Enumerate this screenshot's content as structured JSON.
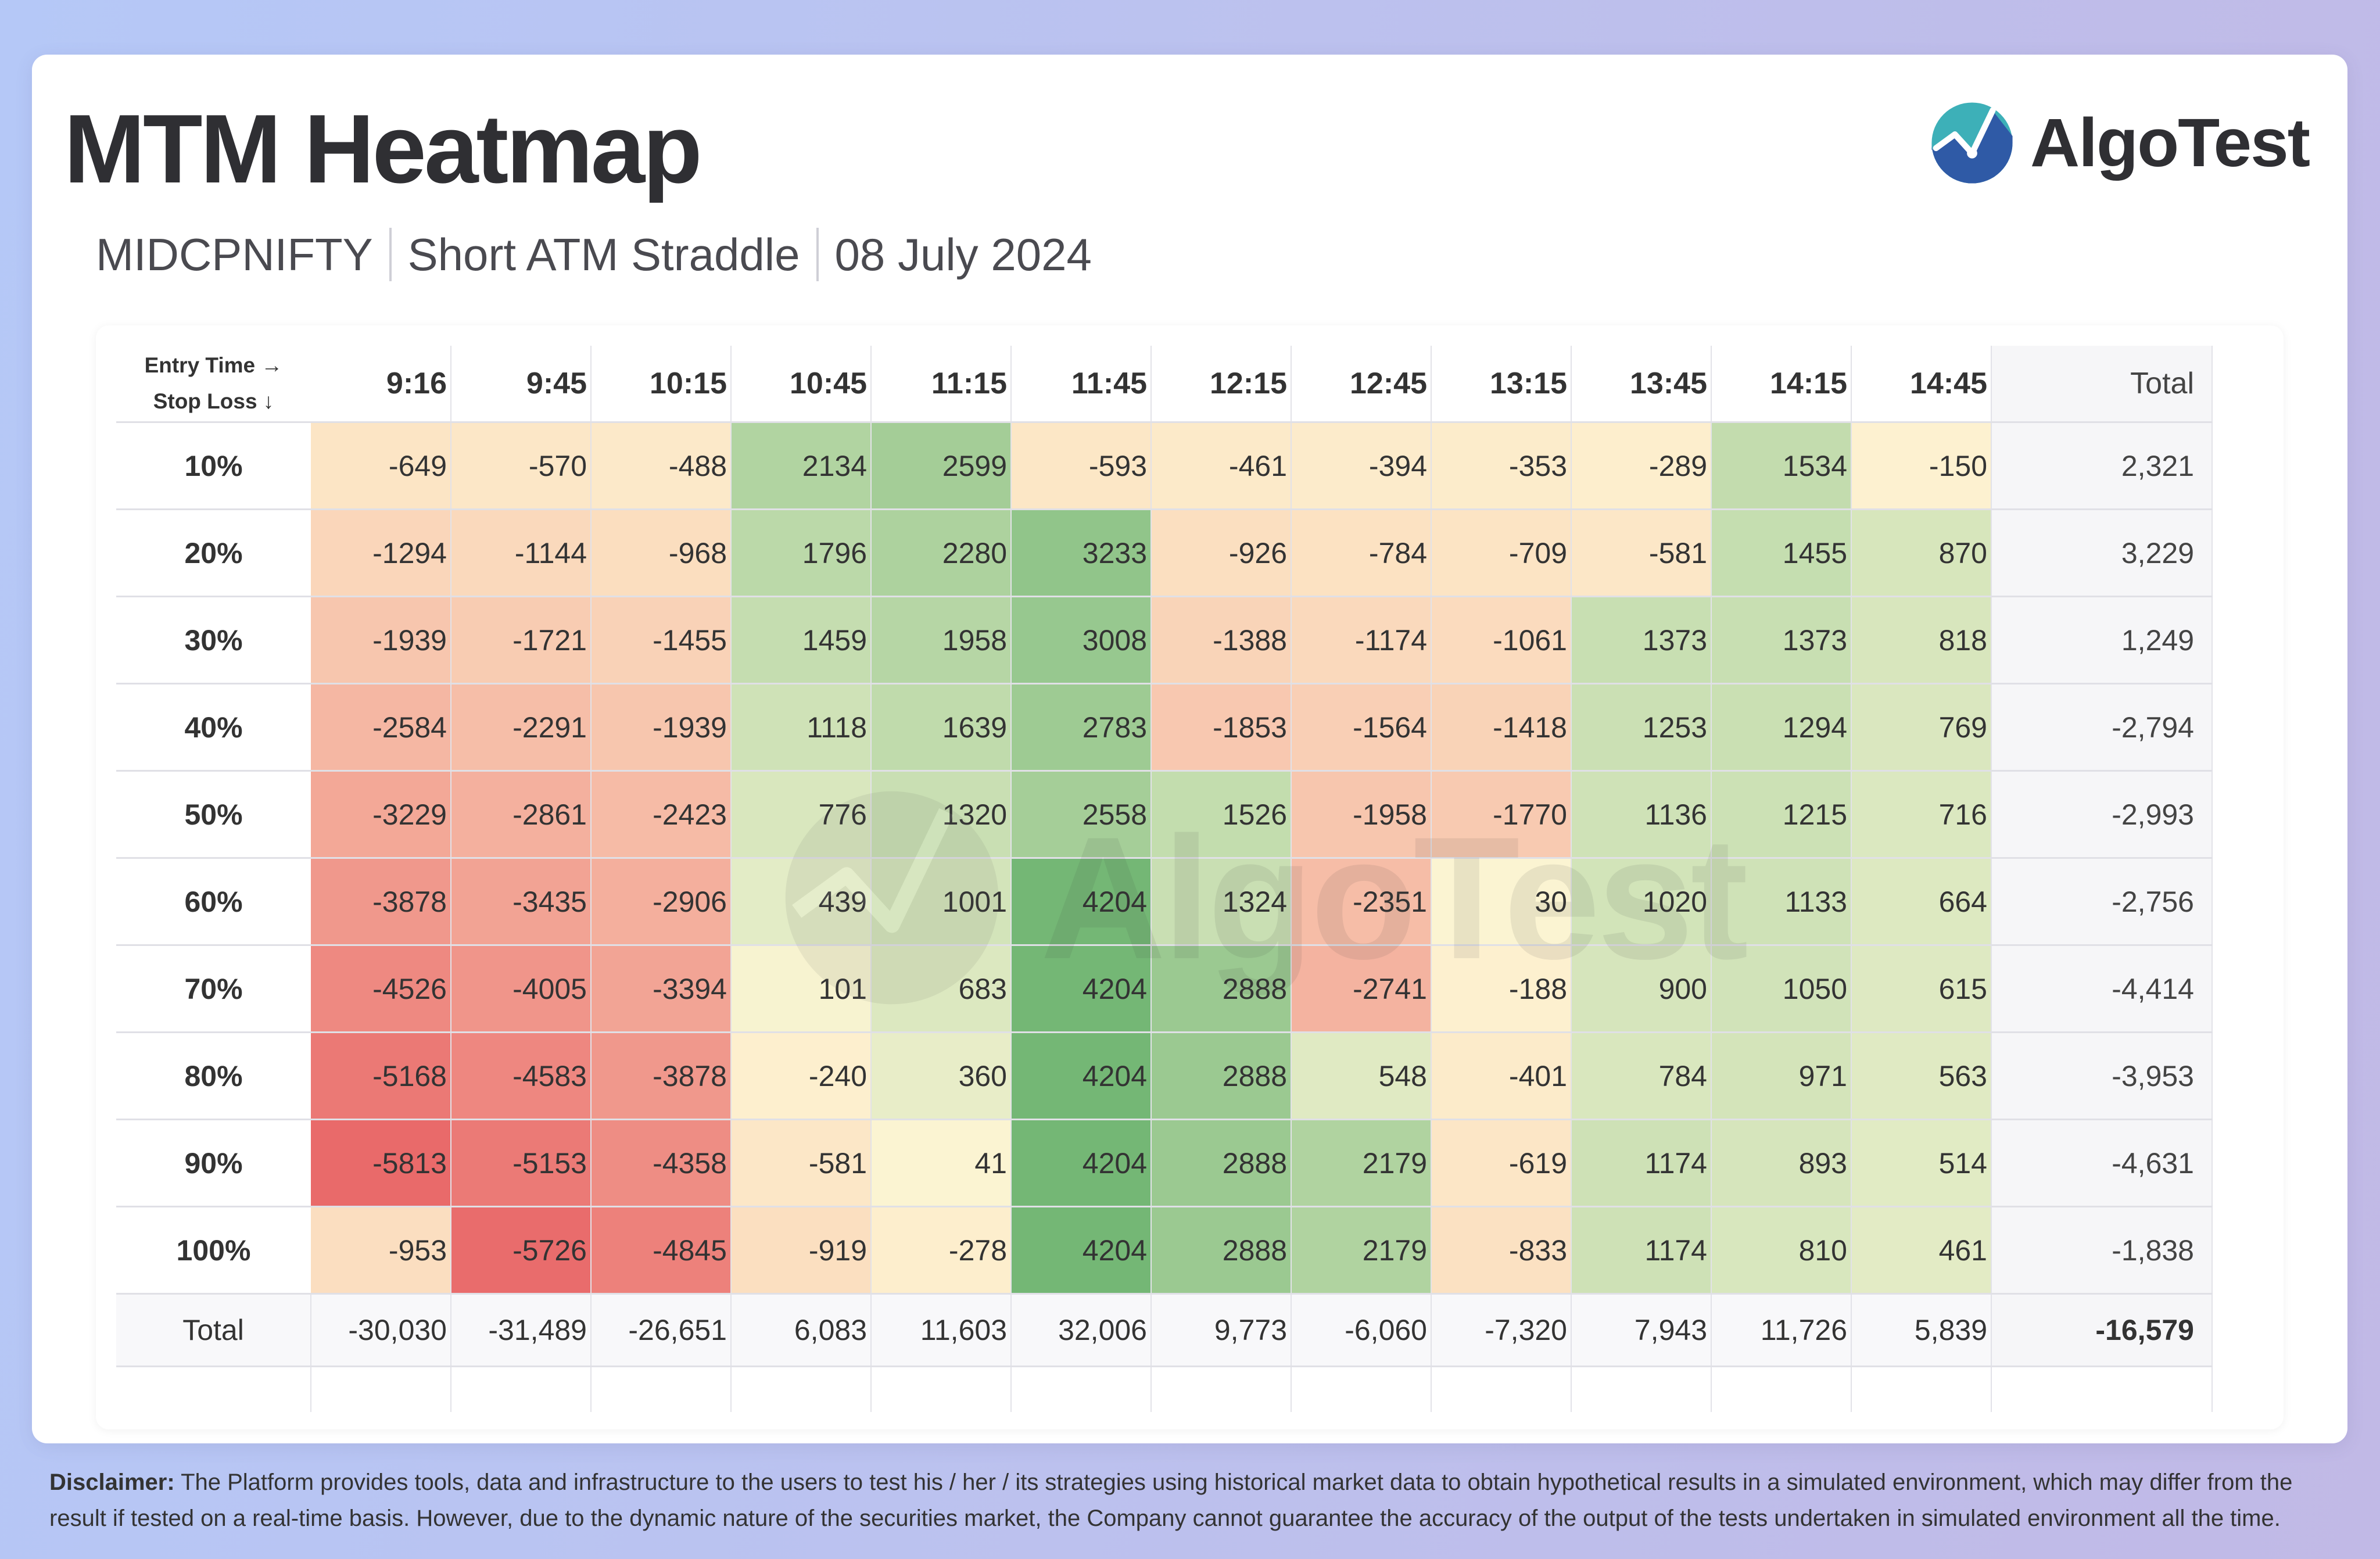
{
  "header": {
    "title": "MTM Heatmap",
    "instrument": "MIDCPNIFTY",
    "strategy": "Short ATM Straddle",
    "date": "08 July 2024"
  },
  "logo": {
    "brand": "AlgoTest",
    "icon": "algotest-logo-icon",
    "watermark": "AlgoTest"
  },
  "colors": {
    "negative_strong": "#e96a6a",
    "negative_light": "#fce4c4",
    "neutral": "#fdf5d3",
    "positive_light": "#e4ecc6",
    "positive_strong": "#74b775",
    "total_column": "#f6f6f8"
  },
  "table": {
    "corner": {
      "x_label": "Entry Time →",
      "y_label": "Stop Loss ↓"
    },
    "total_label": "Total",
    "grand_total": "-16,579",
    "column_totals": [
      "-30,030",
      "-31,489",
      "-26,651",
      "6,083",
      "11,603",
      "32,006",
      "9,773",
      "-6,060",
      "-7,320",
      "7,943",
      "11,726",
      "5,839"
    ],
    "row_totals": [
      "2,321",
      "3,229",
      "1,249",
      "-2,794",
      "-2,993",
      "-2,756",
      "-4,414",
      "-3,953",
      "-4,631",
      "-1,838"
    ]
  },
  "chart_data": {
    "type": "heatmap",
    "title": "MTM Heatmap",
    "xlabel": "Entry Time",
    "ylabel": "Stop Loss",
    "x": [
      "9:16",
      "9:45",
      "10:15",
      "10:45",
      "11:15",
      "11:45",
      "12:15",
      "12:45",
      "13:15",
      "13:45",
      "14:15",
      "14:45"
    ],
    "y": [
      "10%",
      "20%",
      "30%",
      "40%",
      "50%",
      "60%",
      "70%",
      "80%",
      "90%",
      "100%"
    ],
    "values": [
      [
        -649,
        -570,
        -488,
        2134,
        2599,
        -593,
        -461,
        -394,
        -353,
        -289,
        1534,
        -150
      ],
      [
        -1294,
        -1144,
        -968,
        1796,
        2280,
        3233,
        -926,
        -784,
        -709,
        -581,
        1455,
        870
      ],
      [
        -1939,
        -1721,
        -1455,
        1459,
        1958,
        3008,
        -1388,
        -1174,
        -1061,
        1373,
        1373,
        818
      ],
      [
        -2584,
        -2291,
        -1939,
        1118,
        1639,
        2783,
        -1853,
        -1564,
        -1418,
        1253,
        1294,
        769
      ],
      [
        -3229,
        -2861,
        -2423,
        776,
        1320,
        2558,
        1526,
        -1958,
        -1770,
        1136,
        1215,
        716
      ],
      [
        -3878,
        -3435,
        -2906,
        439,
        1001,
        4204,
        1324,
        -2351,
        30,
        1020,
        1133,
        664
      ],
      [
        -4526,
        -4005,
        -3394,
        101,
        683,
        4204,
        2888,
        -2741,
        -188,
        900,
        1050,
        615
      ],
      [
        -5168,
        -4583,
        -3878,
        -240,
        360,
        4204,
        2888,
        548,
        -401,
        784,
        971,
        563
      ],
      [
        -5813,
        -5153,
        -4358,
        -581,
        41,
        4204,
        2888,
        2179,
        -619,
        1174,
        893,
        514
      ],
      [
        -953,
        -5726,
        -4845,
        -919,
        -278,
        4204,
        2888,
        2179,
        -833,
        1174,
        810,
        461
      ]
    ],
    "color_scale": {
      "min": -5813,
      "max": 4204,
      "low": "red",
      "mid": "pale yellow",
      "high": "green"
    }
  },
  "disclaimer": {
    "label": "Disclaimer:",
    "text": "The Platform provides tools, data and infrastructure to the users to test his / her / its strategies using historical market data to obtain hypothetical results in a simulated environment, which may differ from the result if tested on a real-time basis. However, due to the dynamic nature of the securities market, the Company cannot guarantee the accuracy of the output of the tests undertaken in simulated environment all the time."
  }
}
